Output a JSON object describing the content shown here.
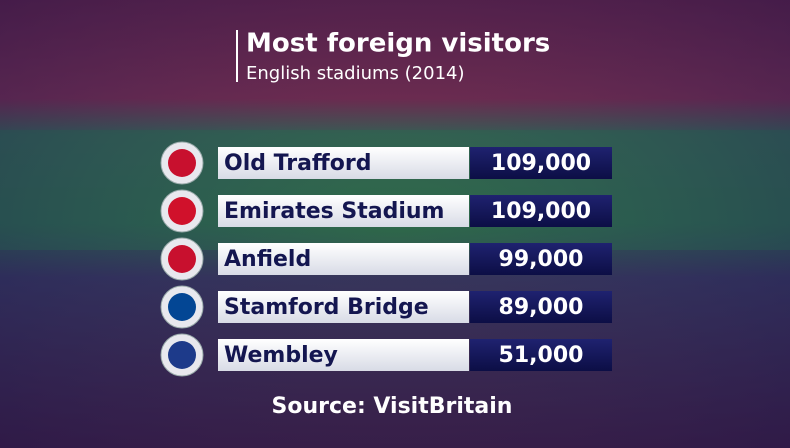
{
  "header": {
    "title": "Most foreign visitors",
    "subtitle": "English stadiums (2014)"
  },
  "table": {
    "rows": [
      {
        "name": "Old Trafford",
        "value": "109,000"
      },
      {
        "name": "Emirates Stadium",
        "value": "109,000"
      },
      {
        "name": "Anfield",
        "value": "99,000"
      },
      {
        "name": "Stamford Bridge",
        "value": "89,000"
      },
      {
        "name": "Wembley",
        "value": "51,000"
      }
    ]
  },
  "source": "Source: VisitBritain"
}
